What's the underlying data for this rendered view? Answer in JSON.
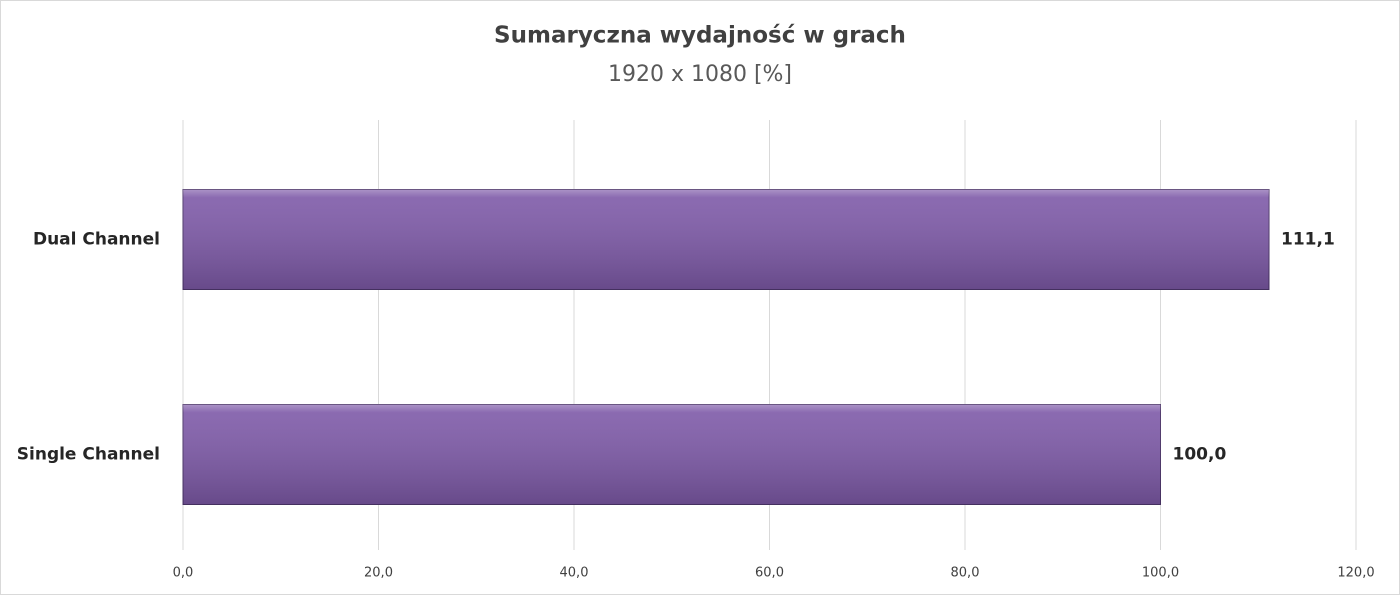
{
  "chart_data": {
    "type": "hbar",
    "title": "Sumaryczna wydajność w grach",
    "subtitle": "1920 x 1080 [%]",
    "categories": [
      "Dual Channel",
      "Single Channel"
    ],
    "values": [
      111.1,
      100.0
    ],
    "value_labels": [
      "111,1",
      "100,0"
    ],
    "color": "#7e5aa8",
    "xlim": [
      0,
      120
    ],
    "xticks": [
      {
        "value": 0,
        "label": "0,0"
      },
      {
        "value": 20,
        "label": "20,0"
      },
      {
        "value": 40,
        "label": "40,0"
      },
      {
        "value": 60,
        "label": "60,0"
      },
      {
        "value": 80,
        "label": "80,0"
      },
      {
        "value": 100,
        "label": "100,0"
      },
      {
        "value": 120,
        "label": "120,0"
      }
    ],
    "grid": true
  }
}
